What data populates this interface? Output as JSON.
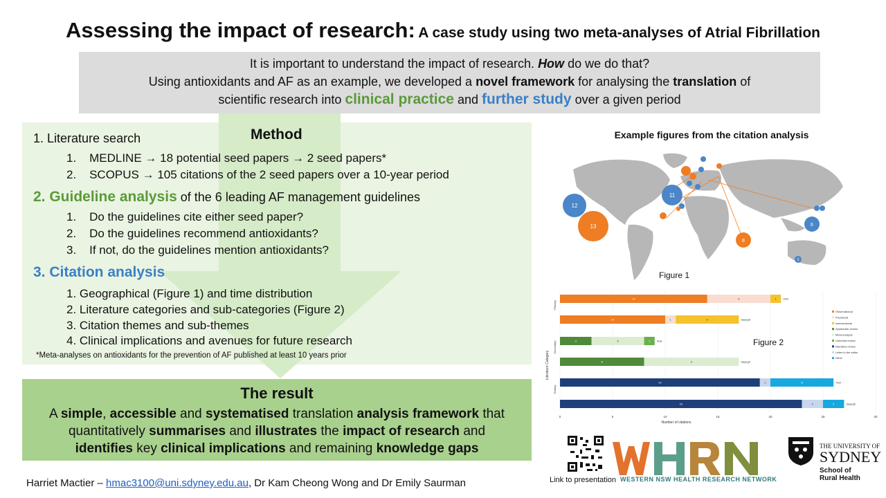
{
  "title": {
    "main": "Assessing the impact of research:",
    "sub": "A case study using two meta-analyses of Atrial Fibrillation"
  },
  "intro": {
    "l1a": "It is important to understand the impact of research. ",
    "l1b": "How",
    "l1c": " do we do that?",
    "l2a": "Using antioxidants and AF as an example, we developed a ",
    "l2b": "novel framework",
    "l2c": " for analysing the ",
    "l2d": "translation",
    "l2e": " of",
    "l3a": "scientific research into ",
    "l3b": "clinical practice",
    "l3c": " and ",
    "l3d": "further study",
    "l3e": " over a given period"
  },
  "method": {
    "title": "Method",
    "s1": "1. Literature search",
    "s1_items": [
      {
        "num": "1.",
        "text": "MEDLINE → 18 potential seed papers → 2 seed papers*"
      },
      {
        "num": "2.",
        "text": "SCOPUS → 105 citations of the 2 seed papers over a 10-year period"
      }
    ],
    "s2_head": "2. Guideline analysis",
    "s2_tail": " of the 6 leading AF management guidelines",
    "s2_items": [
      {
        "num": "1.",
        "text": "Do the guidelines cite either seed paper?"
      },
      {
        "num": "2.",
        "text": "Do the guidelines recommend antioxidants?"
      },
      {
        "num": "3.",
        "text": "If not, do the guidelines mention antioxidants?"
      }
    ],
    "s3_head": "3. Citation analysis",
    "s3_items": [
      "1. Geographical (Figure 1) and time distribution",
      "2. Literature categories and sub-categories (Figure 2)",
      "3. Citation themes and sub-themes",
      "4. Clinical implications and avenues for future research"
    ],
    "footnote": "*Meta-analyses on antioxidants for the prevention of AF published at least 10 years prior"
  },
  "result": {
    "title": "The result",
    "r1": "A ",
    "r2": "simple",
    "r3": ", ",
    "r4": "accessible",
    "r5": " and ",
    "r6": "systematised",
    "r7": " translation ",
    "r8": "analysis framework",
    "r9": " that",
    "r10": "quantitatively ",
    "r11": "summarises",
    "r12": " and ",
    "r13": "illustrates",
    "r14": " the ",
    "r15": "impact of research",
    "r16": " and",
    "r17": "identifies",
    "r18": " key ",
    "r19": "clinical implications",
    "r20": " and remaining ",
    "r21": "knowledge gaps"
  },
  "authors": {
    "a1": "Harriet Mactier – ",
    "email": "hmac3100@uni.sdyney.edu.au",
    "a2": ", Dr Kam Cheong Wong and Dr Emily Saurman"
  },
  "figures": {
    "heading": "Example figures from the citation analysis",
    "fig1_label": "Figure 1",
    "fig2_label": "Figure 2"
  },
  "map_bubbles": [
    {
      "country": "Americas west",
      "value": "12",
      "color": "#4a86c8"
    },
    {
      "country": "Americas south",
      "value": "13",
      "color": "#ee7d23"
    },
    {
      "country": "Europe",
      "value": "11",
      "color": "#4a86c8"
    },
    {
      "country": "Asia",
      "value": "8",
      "color": "#ee7d23"
    },
    {
      "country": "East Asia",
      "value": "6",
      "color": "#4a86c8"
    },
    {
      "country": "Oceania",
      "value": "3",
      "color": "#4a86c8"
    }
  ],
  "chart_data": {
    "type": "bar",
    "orientation": "horizontal",
    "stacked": true,
    "ylabel": "Literature Category",
    "xlabel": "Number of citations",
    "xlim": [
      0,
      30
    ],
    "xticks": [
      "0",
      "5",
      "10",
      "15",
      "20",
      "25",
      "30"
    ],
    "groups": [
      "Primary",
      "Secondary",
      "Tertiary"
    ],
    "rows": [
      {
        "group": "Primary",
        "label": "Violi",
        "segments": [
          {
            "name": "Observational",
            "value": 14,
            "color": "#ee7d23"
          },
          {
            "name": "Preclinical",
            "value": 6,
            "color": "#f8ddd0"
          },
          {
            "name": "Interventional",
            "value": 1,
            "color": "#f5c22b"
          }
        ]
      },
      {
        "group": "Primary",
        "label": "Sayegh",
        "segments": [
          {
            "name": "Observational",
            "value": 10,
            "color": "#ee7d23"
          },
          {
            "name": "Preclinical",
            "value": 1,
            "color": "#f8ddd0"
          },
          {
            "name": "Interventional",
            "value": 6,
            "color": "#f5c22b"
          }
        ]
      },
      {
        "group": "Secondary",
        "label": "Violi",
        "segments": [
          {
            "name": "Systematic review",
            "value": 3,
            "color": "#4f8a3a"
          },
          {
            "name": "Meta-analysis",
            "value": 5,
            "color": "#dcecd0"
          },
          {
            "name": "Umbrella review",
            "value": 1,
            "color": "#6ab04c"
          }
        ]
      },
      {
        "group": "Secondary",
        "label": "Sayegh",
        "segments": [
          {
            "name": "Systematic review",
            "value": 8,
            "color": "#4f8a3a"
          },
          {
            "name": "Meta-analysis",
            "value": 9,
            "color": "#dcecd0"
          }
        ]
      },
      {
        "group": "Tertiary",
        "label": "Violi",
        "segments": [
          {
            "name": "Narrative review",
            "value": 19,
            "color": "#1f3f78"
          },
          {
            "name": "Letter to the editor",
            "value": 1,
            "color": "#c7d6ec"
          },
          {
            "name": "Other",
            "value": 6,
            "color": "#18a8e0"
          }
        ]
      },
      {
        "group": "Tertiary",
        "label": "Sayegh",
        "segments": [
          {
            "name": "Narrative review",
            "value": 23,
            "color": "#1f3f78"
          },
          {
            "name": "Letter to the editor",
            "value": 2,
            "color": "#c7d6ec"
          },
          {
            "name": "Other",
            "value": 2,
            "color": "#18a8e0"
          }
        ]
      }
    ],
    "legend": [
      {
        "name": "Observational",
        "color": "#ee7d23"
      },
      {
        "name": "Preclinical",
        "color": "#f8ddd0"
      },
      {
        "name": "Interventional",
        "color": "#f5c22b"
      },
      {
        "name": "Systematic review",
        "color": "#4f8a3a"
      },
      {
        "name": "Meta-analysis",
        "color": "#dcecd0"
      },
      {
        "name": "Umbrella review",
        "color": "#6ab04c"
      },
      {
        "name": "Narrative review",
        "color": "#1f3f78"
      },
      {
        "name": "Letter to the editor",
        "color": "#c7d6ec"
      },
      {
        "name": "Other",
        "color": "#18a8e0"
      }
    ],
    "legend_position": "right"
  },
  "logos": {
    "qr_label": "Link to presentation",
    "whrn_sub": "WESTERN NSW HEALTH RESEARCH NETWORK",
    "uni_line1": "THE UNIVERSITY OF",
    "uni_line2": "SYDNEY",
    "school1": "School of",
    "school2": "Rural Health"
  }
}
